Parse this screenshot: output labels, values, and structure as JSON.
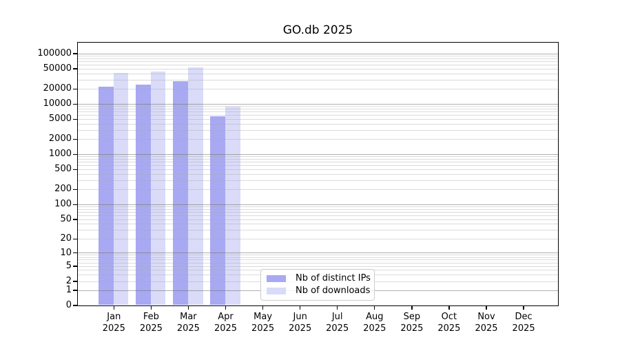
{
  "title": "GO.db 2025",
  "chart_data": {
    "type": "bar",
    "title": "GO.db 2025",
    "x_tick_labels_line1": [
      "Jan",
      "Feb",
      "Mar",
      "Apr",
      "May",
      "Jun",
      "Jul",
      "Aug",
      "Sep",
      "Oct",
      "Nov",
      "Dec"
    ],
    "x_tick_labels_line2": "2025",
    "series": [
      {
        "name": "Nb of distinct IPs",
        "color": "#a8a9f2",
        "values": [
          21500,
          24000,
          28000,
          5700,
          null,
          null,
          null,
          null,
          null,
          null,
          null,
          null
        ]
      },
      {
        "name": "Nb of downloads",
        "color": "#d9dbf8",
        "values": [
          41000,
          43500,
          53000,
          8700,
          null,
          null,
          null,
          null,
          null,
          null,
          null,
          null
        ]
      }
    ],
    "y_axis": {
      "scale": "log10(value+1)",
      "tick_values": [
        0,
        1,
        2,
        5,
        10,
        20,
        50,
        100,
        200,
        500,
        1000,
        2000,
        5000,
        10000,
        20000,
        50000,
        100000
      ],
      "range_max": 150000
    },
    "legend_entries": [
      "Nb of distinct IPs",
      "Nb of downloads"
    ],
    "grid": {
      "major_lines": "powers of 10",
      "minor_lines": "2-9 multiples per decade",
      "orientation": "horizontal"
    }
  },
  "colors": {
    "bar_distinct_ips": "#a8a9f2",
    "bar_downloads": "#d9dbf8",
    "axis": "#000000",
    "major_grid": "#b3b3b3",
    "minor_grid": "#e7e7e7",
    "legend_border": "#cccccc",
    "background": "#ffffff"
  }
}
